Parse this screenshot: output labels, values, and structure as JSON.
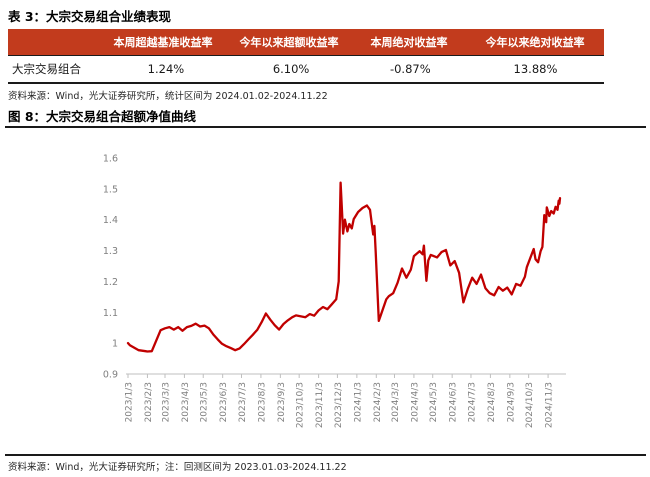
{
  "colors": {
    "table_header_bg": "#C23B1D",
    "table_header_text": "#FFFFFF",
    "line_color": "#C00000",
    "axis_color": "#BFBFBF",
    "tick_label_color": "#7F7F7F"
  },
  "table": {
    "title": "表 3：大宗交易组合业绩表现",
    "header": [
      "",
      "本周超越基准收益率",
      "今年以来超额收益率",
      "本周绝对收益率",
      "今年以来绝对收益率"
    ],
    "rows": [
      [
        "大宗交易组合",
        "1.24%",
        "6.10%",
        "-0.87%",
        "13.88%"
      ]
    ],
    "source": "资料来源：Wind，光大证券研究所，统计区间为 2024.01.02-2024.11.22"
  },
  "figure": {
    "title": "图 8：大宗交易组合超额净值曲线",
    "source": "资料来源：Wind，光大证券研究所；注：回测区间为 2023.01.03-2024.11.22"
  },
  "chart_data": {
    "type": "line",
    "title": "大宗交易组合超额净值曲线",
    "grid": false,
    "legend": "none",
    "ylim": [
      0.9,
      1.6
    ],
    "y_ticks": [
      0.9,
      1.0,
      1.1,
      1.2,
      1.3,
      1.4,
      1.5,
      1.6
    ],
    "y_tick_labels": [
      "0.9",
      "1",
      "1.1",
      "1.2",
      "1.3",
      "1.4",
      "1.5",
      "1.6"
    ],
    "x_range": [
      "2023/1/3",
      "2024/11/22"
    ],
    "x_ticks": [
      "2023/1/3",
      "2023/2/3",
      "2023/3/3",
      "2023/4/3",
      "2023/5/3",
      "2023/6/3",
      "2023/7/3",
      "2023/8/3",
      "2023/9/3",
      "2023/10/3",
      "2023/11/3",
      "2023/12/3",
      "2024/1/3",
      "2024/2/3",
      "2024/3/3",
      "2024/4/3",
      "2024/5/3",
      "2024/6/3",
      "2024/7/3",
      "2024/8/3",
      "2024/9/3",
      "2024/10/3",
      "2024/11/3"
    ],
    "series": [
      {
        "name": "大宗交易组合超额净值",
        "color": "#C00000",
        "x": [
          "2023/1/3",
          "2023/1/6",
          "2023/1/13",
          "2023/1/20",
          "2023/1/31",
          "2023/2/3",
          "2023/2/10",
          "2023/2/17",
          "2023/2/24",
          "2023/3/3",
          "2023/3/10",
          "2023/3/17",
          "2023/3/24",
          "2023/3/31",
          "2023/4/7",
          "2023/4/14",
          "2023/4/21",
          "2023/4/28",
          "2023/5/5",
          "2023/5/12",
          "2023/5/19",
          "2023/5/26",
          "2023/6/2",
          "2023/6/9",
          "2023/6/16",
          "2023/6/23",
          "2023/6/30",
          "2023/7/7",
          "2023/7/14",
          "2023/7/21",
          "2023/7/28",
          "2023/8/4",
          "2023/8/11",
          "2023/8/18",
          "2023/8/25",
          "2023/9/1",
          "2023/9/8",
          "2023/9/15",
          "2023/9/22",
          "2023/9/28",
          "2023/10/13",
          "2023/10/20",
          "2023/10/27",
          "2023/11/3",
          "2023/11/10",
          "2023/11/17",
          "2023/11/24",
          "2023/12/1",
          "2023/12/5",
          "2023/12/8",
          "2023/12/12",
          "2023/12/15",
          "2023/12/19",
          "2023/12/22",
          "2023/12/26",
          "2023/12/29",
          "2024/1/5",
          "2024/1/12",
          "2024/1/19",
          "2024/1/24",
          "2024/1/29",
          "2024/1/31",
          "2024/2/2",
          "2024/2/7",
          "2024/2/19",
          "2024/2/23",
          "2024/3/1",
          "2024/3/8",
          "2024/3/15",
          "2024/3/22",
          "2024/3/29",
          "2024/4/3",
          "2024/4/12",
          "2024/4/17",
          "2024/4/19",
          "2024/4/23",
          "2024/4/26",
          "2024/4/30",
          "2024/5/10",
          "2024/5/17",
          "2024/5/24",
          "2024/5/31",
          "2024/6/7",
          "2024/6/14",
          "2024/6/21",
          "2024/6/28",
          "2024/7/5",
          "2024/7/12",
          "2024/7/19",
          "2024/7/26",
          "2024/8/2",
          "2024/8/9",
          "2024/8/16",
          "2024/8/23",
          "2024/8/30",
          "2024/9/6",
          "2024/9/13",
          "2024/9/20",
          "2024/9/27",
          "2024/9/30",
          "2024/10/11",
          "2024/10/14",
          "2024/10/18",
          "2024/10/22",
          "2024/10/25",
          "2024/10/28",
          "2024/10/31",
          "2024/11/1",
          "2024/11/5",
          "2024/11/8",
          "2024/11/12",
          "2024/11/15",
          "2024/11/18",
          "2024/11/20",
          "2024/11/21",
          "2024/11/22"
        ],
        "values": [
          1.0,
          0.993,
          0.985,
          0.977,
          0.974,
          0.973,
          0.974,
          1.008,
          1.042,
          1.048,
          1.052,
          1.044,
          1.052,
          1.04,
          1.052,
          1.056,
          1.063,
          1.054,
          1.057,
          1.048,
          1.028,
          1.012,
          0.998,
          0.99,
          0.984,
          0.977,
          0.983,
          0.997,
          1.012,
          1.027,
          1.043,
          1.068,
          1.096,
          1.076,
          1.058,
          1.044,
          1.062,
          1.074,
          1.084,
          1.09,
          1.084,
          1.094,
          1.089,
          1.106,
          1.117,
          1.11,
          1.126,
          1.142,
          1.2,
          1.52,
          1.355,
          1.4,
          1.362,
          1.386,
          1.372,
          1.402,
          1.425,
          1.438,
          1.446,
          1.432,
          1.352,
          1.38,
          1.295,
          1.072,
          1.142,
          1.152,
          1.162,
          1.196,
          1.242,
          1.212,
          1.238,
          1.282,
          1.298,
          1.288,
          1.316,
          1.202,
          1.268,
          1.286,
          1.278,
          1.295,
          1.302,
          1.252,
          1.266,
          1.228,
          1.132,
          1.176,
          1.212,
          1.192,
          1.222,
          1.178,
          1.162,
          1.155,
          1.182,
          1.17,
          1.18,
          1.158,
          1.192,
          1.186,
          1.215,
          1.246,
          1.305,
          1.272,
          1.262,
          1.298,
          1.312,
          1.415,
          1.392,
          1.44,
          1.412,
          1.428,
          1.42,
          1.442,
          1.432,
          1.462,
          1.452,
          1.47
        ]
      }
    ]
  }
}
